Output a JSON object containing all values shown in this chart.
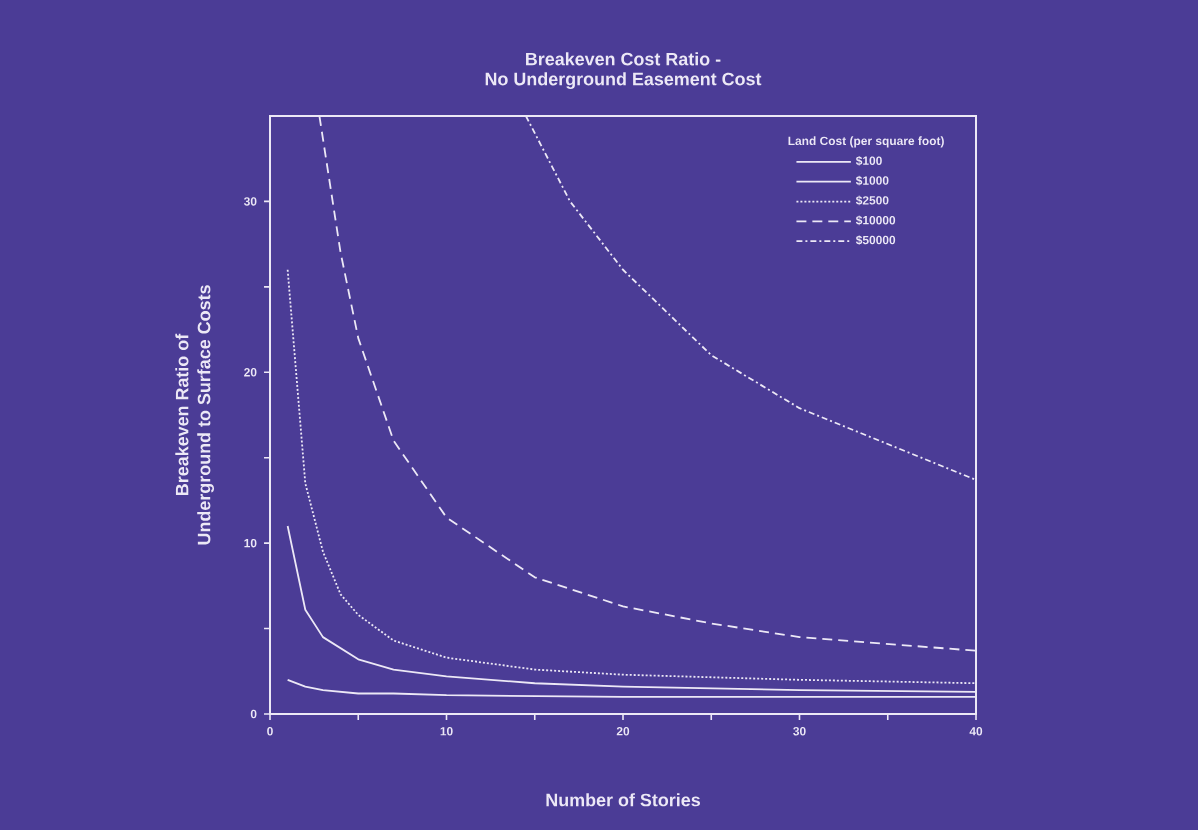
{
  "chart_data": {
    "type": "line",
    "title": "Breakeven Cost Ratio -\nNo Underground Easement Cost",
    "xlabel": "Number of Stories",
    "ylabel": "Breakeven Ratio of\nUnderground to Surface Costs",
    "legend_title": "Land Cost (per square foot)",
    "legend": "top right",
    "grid": false,
    "xlim": [
      0,
      40
    ],
    "ylim": [
      0,
      35
    ],
    "xticks": [
      0,
      {
        "value": 5,
        "label": null
      },
      10,
      {
        "value": 15,
        "label": null
      },
      20,
      {
        "value": 25,
        "label": null
      },
      30,
      {
        "value": 35,
        "label": null
      },
      40
    ],
    "yticks": [
      0,
      {
        "value": 5,
        "label": null
      },
      10,
      {
        "value": 15,
        "label": null
      },
      20,
      {
        "value": 25,
        "label": null
      },
      30
    ],
    "series": [
      {
        "name": "$100",
        "color": "#ece8f6",
        "line_style": "solid",
        "x": [
          1,
          2,
          3,
          5,
          7,
          10,
          20,
          30,
          40
        ],
        "values": [
          2.0,
          1.6,
          1.4,
          1.2,
          1.2,
          1.1,
          1.0,
          1.0,
          1.0
        ]
      },
      {
        "name": "$1000",
        "color": "#ece8f6",
        "line_style": "solid",
        "x": [
          1,
          2,
          3,
          5,
          7,
          10,
          15,
          20,
          30,
          40
        ],
        "values": [
          11,
          6.1,
          4.5,
          3.2,
          2.6,
          2.2,
          1.8,
          1.6,
          1.4,
          1.3
        ]
      },
      {
        "name": "$2500",
        "color": "#ece8f6",
        "line_style": "dotted",
        "x": [
          1,
          2,
          3,
          4,
          5,
          7,
          10,
          15,
          20,
          30,
          40
        ],
        "values": [
          26,
          13.5,
          9.5,
          7,
          5.8,
          4.3,
          3.3,
          2.6,
          2.3,
          2.0,
          1.8
        ]
      },
      {
        "name": "$10000",
        "color": "#ece8f6",
        "line_style": "dashed",
        "x": [
          2.8,
          4,
          5,
          7,
          10,
          15,
          20,
          25,
          30,
          40
        ],
        "values": [
          35,
          27,
          22,
          16,
          11.5,
          8,
          6.3,
          5.3,
          4.5,
          3.7
        ]
      },
      {
        "name": "$50000",
        "color": "#ece8f6",
        "line_style": "dashdotted",
        "x": [
          14.5,
          17,
          20,
          25,
          30,
          40
        ],
        "values": [
          35,
          30,
          26,
          21,
          17.9,
          13.7
        ]
      }
    ]
  }
}
